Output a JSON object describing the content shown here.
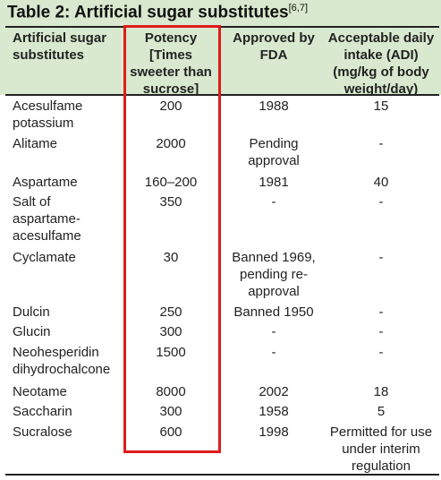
{
  "title": {
    "text": "Table 2: Artificial sugar substitutes",
    "ref": "[6,7]"
  },
  "table": {
    "header": [
      "Artificial sugar substitutes",
      "Potency [Times sweeter than sucrose]",
      "Approved by FDA",
      "Acceptable daily intake (ADI) (mg/kg of body weight/day)"
    ],
    "rows": [
      [
        "Acesulfame potassium",
        "200",
        "1988",
        "15"
      ],
      [
        "Alitame",
        "2000",
        "Pending approval",
        "-"
      ],
      [
        "Aspartame",
        "160–200",
        "1981",
        "40"
      ],
      [
        "Salt of aspartame-acesulfame",
        "350",
        "-",
        "-"
      ],
      [
        "Cyclamate",
        "30",
        "Banned 1969, pending re-approval",
        "-"
      ],
      [
        "Dulcin",
        "250",
        "Banned 1950",
        "-"
      ],
      [
        "Glucin",
        "300",
        "-",
        "-"
      ],
      [
        "Neohesperidin dihydrochalcone",
        "1500",
        "-",
        "-"
      ],
      [
        "Neotame",
        "8000",
        "2002",
        "18"
      ],
      [
        "Saccharin",
        "300",
        "1958",
        "5"
      ],
      [
        "Sucralose",
        "600",
        "1998",
        "Permitted for use under interim regulation"
      ]
    ]
  }
}
